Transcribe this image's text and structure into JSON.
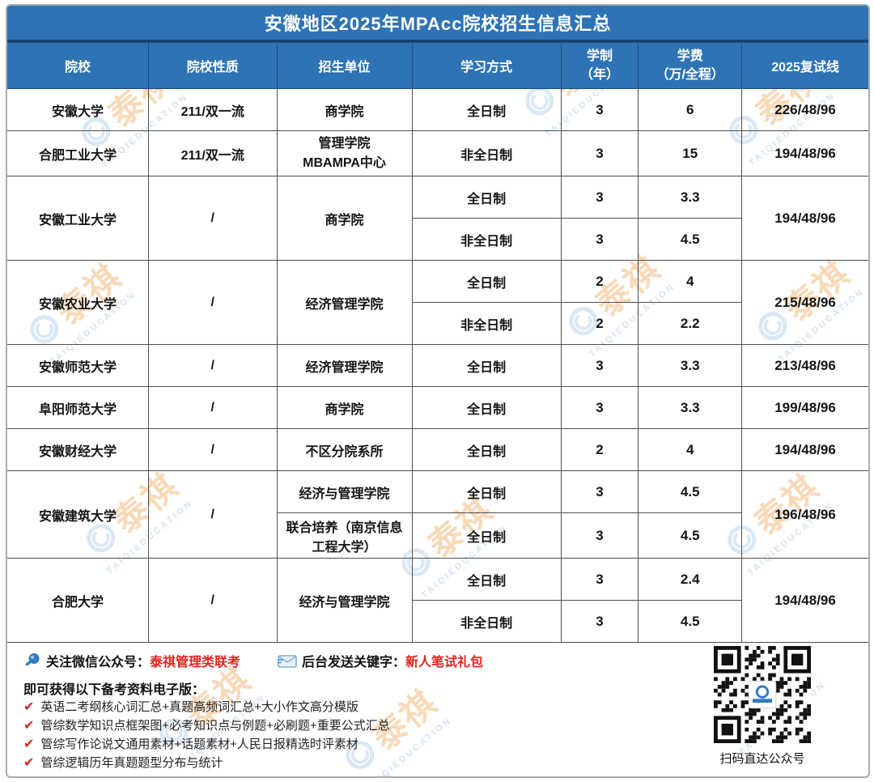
{
  "banner": {
    "title": "安徽地区2025年MPAcc院校招生信息汇总"
  },
  "colors": {
    "primary_blue": "#2e74b5",
    "accent_red": "#e8231e"
  },
  "table": {
    "headers": {
      "school": "院校",
      "nature": "院校性质",
      "unit": "招生单位",
      "mode": "学习方式",
      "duration_top": "学制",
      "duration_bottom": "（年）",
      "fee_top": "学费",
      "fee_bottom": "（万/全程）",
      "retest": "2025复试线"
    },
    "rows": [
      {
        "school": "安徽大学",
        "nature": "211/双一流",
        "unit": "商学院",
        "mode": "全日制",
        "years": "3",
        "fee": "6",
        "retest": "226/48/96"
      },
      {
        "school": "合肥工业大学",
        "nature": "211/双一流",
        "unit": "管理学院\nMBAMPA中心",
        "mode": "非全日制",
        "years": "3",
        "fee": "15",
        "retest": "194/48/96"
      },
      {
        "school": "安徽工业大学",
        "nature": "/",
        "unit": "商学院",
        "retest": "194/48/96",
        "sub": [
          {
            "mode": "全日制",
            "years": "3",
            "fee": "3.3"
          },
          {
            "mode": "非全日制",
            "years": "3",
            "fee": "4.5"
          }
        ]
      },
      {
        "school": "安徽农业大学",
        "nature": "/",
        "unit": "经济管理学院",
        "retest": "215/48/96",
        "sub": [
          {
            "mode": "全日制",
            "years": "2",
            "fee": "4"
          },
          {
            "mode": "非全日制",
            "years": "2",
            "fee": "2.2"
          }
        ]
      },
      {
        "school": "安徽师范大学",
        "nature": "/",
        "unit": "经济管理学院",
        "mode": "全日制",
        "years": "3",
        "fee": "3.3",
        "retest": "213/48/96"
      },
      {
        "school": "阜阳师范大学",
        "nature": "/",
        "unit": "商学院",
        "mode": "全日制",
        "years": "3",
        "fee": "3.3",
        "retest": "199/48/96"
      },
      {
        "school": "安徽财经大学",
        "nature": "/",
        "unit": "不区分院系所",
        "mode": "全日制",
        "years": "2",
        "fee": "4",
        "retest": "194/48/96"
      },
      {
        "school": "安徽建筑大学",
        "nature": "/",
        "retest": "196/48/96",
        "sub": [
          {
            "unit": "经济与管理学院",
            "mode": "全日制",
            "years": "3",
            "fee": "4.5"
          },
          {
            "unit": "联合培养（南京信息工程大学）",
            "mode": "全日制",
            "years": "3",
            "fee": "4.5"
          }
        ]
      },
      {
        "school": "合肥大学",
        "nature": "/",
        "unit": "经济与管理学院",
        "retest": "194/48/96",
        "sub": [
          {
            "mode": "全日制",
            "years": "3",
            "fee": "2.4"
          },
          {
            "mode": "非全日制",
            "years": "3",
            "fee": "4.5"
          }
        ]
      }
    ]
  },
  "footer": {
    "follow_label": "关注微信公众号：",
    "follow_account": "泰祺管理类联考",
    "keyword_label": "后台发送关键字：",
    "keyword_value": "新人笔试礼包",
    "gift_title": "即可获得以下备考资料电子版：",
    "check_glyph": "✔",
    "gift_items": [
      "英语二考纲核心词汇总+真题高频词汇总+大小作文高分模版",
      "管综数学知识点框架图+必考知识点与例题+必刷题+重要公式汇总",
      "管综写作论说文通用素材+话题素材+人民日报精选时评素材",
      "管综逻辑历年真题题型分布与统计"
    ],
    "qr_caption": "扫码直达公众号"
  },
  "watermark": {
    "cn": "泰祺",
    "en": "TAIQIEDUCATION"
  }
}
